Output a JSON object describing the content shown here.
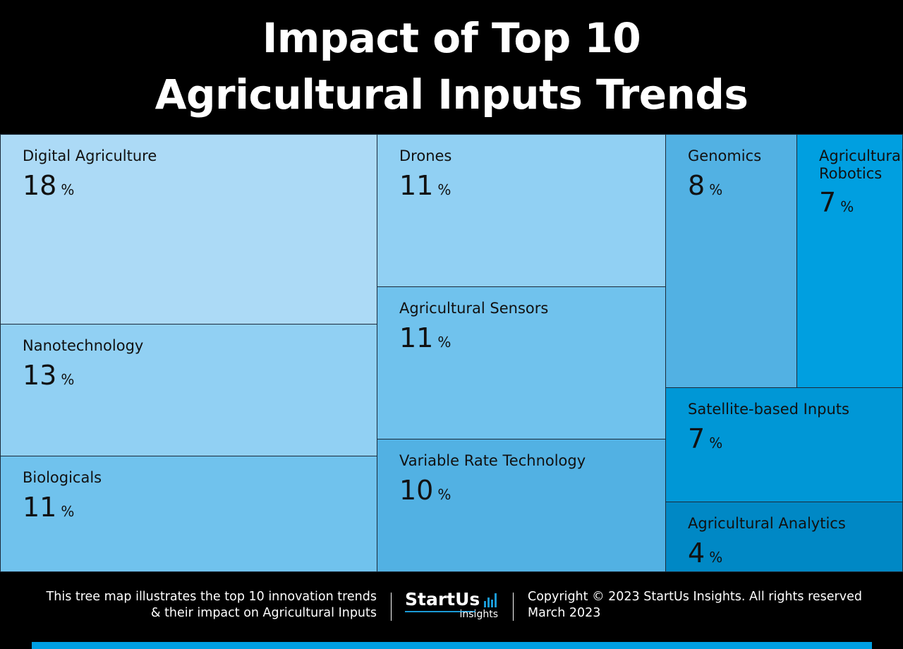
{
  "title": {
    "line1": "Impact of Top 10",
    "line2": "Agricultural Inputs Trends"
  },
  "chart_data": {
    "type": "treemap",
    "unit": "%",
    "categories": [
      "Digital Agriculture",
      "Nanotechnology",
      "Biologicals",
      "Drones",
      "Agricultural Sensors",
      "Variable Rate Technology",
      "Genomics",
      "Agricultural Robotics",
      "Satellite-based Inputs",
      "Agricultural Analytics"
    ],
    "values": [
      18,
      13,
      11,
      11,
      11,
      10,
      8,
      7,
      7,
      4
    ],
    "colors": [
      "#acdaf6",
      "#91d0f3",
      "#70c2ed",
      "#91d0f3",
      "#70c2ed",
      "#52b1e3",
      "#52b1e3",
      "#009fe0",
      "#0097d6",
      "#0088c5"
    ],
    "label_breaks": {
      "Agricultural Robotics": [
        "Agricultural",
        "Robotics"
      ]
    }
  },
  "footer": {
    "description_line1": "This tree map illustrates the top 10 innovation trends",
    "description_line2": "& their impact on Agricultural Inputs",
    "logo_brand": "StartUs",
    "logo_sub": "insights",
    "copyright": "Copyright © 2023 StartUs Insights. All rights reserved",
    "date": "March 2023"
  },
  "colors": {
    "background": "#000000",
    "accent": "#009fe3",
    "text_on_tiles": "#111111"
  }
}
